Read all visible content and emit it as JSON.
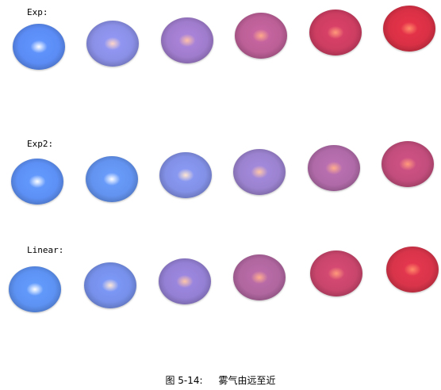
{
  "sections": [
    {
      "label": "Exp:",
      "spheres": [
        {
          "color": "#5b8cf5",
          "highlight": "#ffffff"
        },
        {
          "color": "#8a8fe6",
          "highlight": "#ffd6c8"
        },
        {
          "color": "#a07ccd",
          "highlight": "#ffc1a8"
        },
        {
          "color": "#bc5f97",
          "highlight": "#ffa98a"
        },
        {
          "color": "#cd3d62",
          "highlight": "#ff9a7a"
        },
        {
          "color": "#d93045",
          "highlight": "#ff8a68"
        }
      ]
    },
    {
      "label": "Exp2:",
      "spheres": [
        {
          "color": "#5d90f5",
          "highlight": "#ffffff"
        },
        {
          "color": "#6393f0",
          "highlight": "#ffffff"
        },
        {
          "color": "#8290e6",
          "highlight": "#ffe6d0"
        },
        {
          "color": "#9b82cf",
          "highlight": "#ffc6a8"
        },
        {
          "color": "#b06aa8",
          "highlight": "#ffad8c"
        },
        {
          "color": "#c24d7c",
          "highlight": "#ff9a7a"
        }
      ]
    },
    {
      "label": "Linear:",
      "spheres": [
        {
          "color": "#5d92f3",
          "highlight": "#ffffff"
        },
        {
          "color": "#7690ea",
          "highlight": "#ffe8d6"
        },
        {
          "color": "#9480d4",
          "highlight": "#ffc6a8"
        },
        {
          "color": "#b0669f",
          "highlight": "#ffae8d"
        },
        {
          "color": "#c9456c",
          "highlight": "#ff9a7a"
        },
        {
          "color": "#d8344a",
          "highlight": "#ff8a68"
        }
      ]
    }
  ],
  "caption": {
    "number": "图 5-14:",
    "text": "雾气由远至近"
  }
}
